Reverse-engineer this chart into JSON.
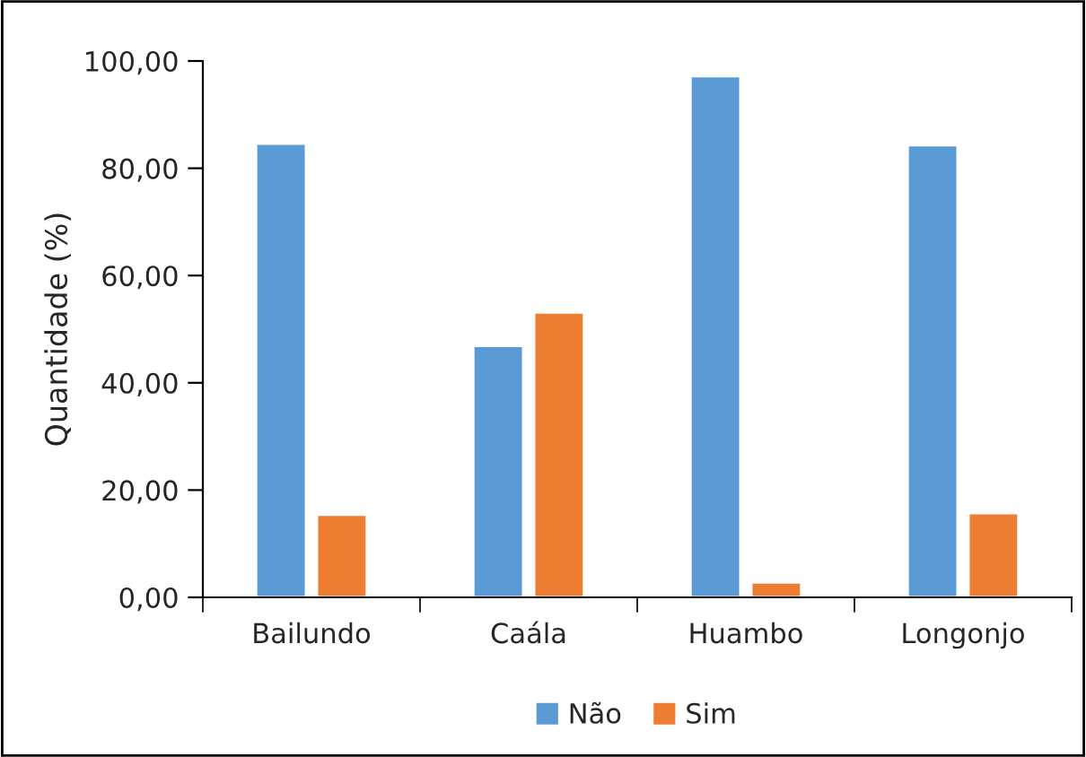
{
  "chart_data": {
    "type": "bar",
    "ylabel": "Quantidade (%)",
    "categories": [
      "Bailundo",
      "Caála",
      "Huambo",
      "Longonjo"
    ],
    "series": [
      {
        "name": "Não",
        "color": "#5b9bd5",
        "values": [
          84.6,
          46.9,
          97.2,
          84.3
        ]
      },
      {
        "name": "Sim",
        "color": "#ed7d31",
        "values": [
          15.4,
          53.1,
          2.8,
          15.7
        ]
      }
    ],
    "ylim": [
      0,
      100
    ],
    "yticks": [
      {
        "value": 0,
        "label": "0,00"
      },
      {
        "value": 20,
        "label": "20,00"
      },
      {
        "value": 40,
        "label": "40,00"
      },
      {
        "value": 60,
        "label": "60,00"
      },
      {
        "value": 80,
        "label": "80,00"
      },
      {
        "value": 100,
        "label": "100,00"
      }
    ],
    "grid": false,
    "legend": "bottom"
  }
}
